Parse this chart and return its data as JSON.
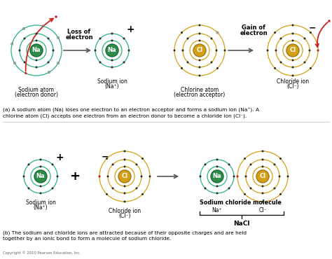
{
  "background_color": "#ffffff",
  "na_color": "#2e8b4a",
  "na_border": "#1a6b32",
  "cl_color": "#d4a017",
  "cl_border": "#a07810",
  "orbit_green": "#2db37a",
  "orbit_gold": "#d4a017",
  "electron_dark": "#2a2a2a",
  "electron_red": "#cc2222",
  "electron_open": "#888888",
  "label_a_text": "(a) A sodium atom (Na) loses one electron to an electron acceptor and forms a sodium ion (Na⁺). A\nchlorine atom (Cl) accepts one electron from an electron donor to become a chloride ion (Cl⁻).",
  "label_b_text": "(b) The sodium and chloride ions are attracted because of their opposite charges and are held\ntogether by an ionic bond to form a molecule of sodium chloride.",
  "copyright": "Copyright © 2010 Pearson Education, Inc."
}
